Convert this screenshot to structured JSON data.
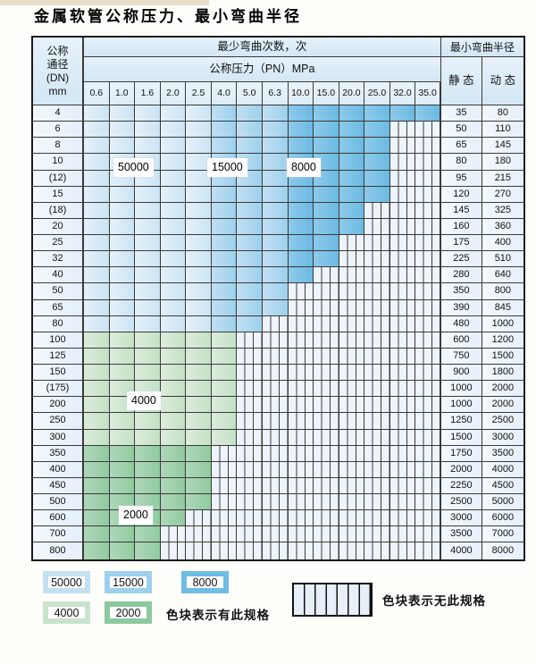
{
  "page_title": "金属软管公称压力、最小弯曲半径",
  "table": {
    "dn_header_lines": [
      "公称",
      "通径",
      "(DN)",
      "mm"
    ],
    "bend_cycles_header": "最少弯曲次数，次",
    "pressure_header": "公称压力（PN）MPa",
    "min_bend_radius_header": "最小弯曲半径",
    "static_label": "静 态",
    "dynamic_label": "动 态",
    "pressure_columns": [
      "0.6",
      "1.0",
      "1.6",
      "2.0",
      "2.5",
      "4.0",
      "5.0",
      "6.3",
      "10.0",
      "15.0",
      "20.0",
      "25.0",
      "32.0",
      "35.0"
    ],
    "rows": [
      {
        "dn": "4",
        "available_cols": 14,
        "static": "35",
        "dynamic": "80"
      },
      {
        "dn": "6",
        "available_cols": 12,
        "static": "50",
        "dynamic": "110"
      },
      {
        "dn": "8",
        "available_cols": 12,
        "static": "65",
        "dynamic": "145"
      },
      {
        "dn": "10",
        "available_cols": 12,
        "static": "80",
        "dynamic": "180"
      },
      {
        "dn": "(12)",
        "available_cols": 12,
        "static": "95",
        "dynamic": "215"
      },
      {
        "dn": "15",
        "available_cols": 12,
        "static": "120",
        "dynamic": "270"
      },
      {
        "dn": "(18)",
        "available_cols": 11,
        "static": "145",
        "dynamic": "325"
      },
      {
        "dn": "20",
        "available_cols": 11,
        "static": "160",
        "dynamic": "360"
      },
      {
        "dn": "25",
        "available_cols": 10,
        "static": "175",
        "dynamic": "400"
      },
      {
        "dn": "32",
        "available_cols": 10,
        "static": "225",
        "dynamic": "510"
      },
      {
        "dn": "40",
        "available_cols": 9,
        "static": "280",
        "dynamic": "640"
      },
      {
        "dn": "50",
        "available_cols": 8,
        "static": "350",
        "dynamic": "800"
      },
      {
        "dn": "65",
        "available_cols": 8,
        "static": "390",
        "dynamic": "845"
      },
      {
        "dn": "80",
        "available_cols": 7,
        "static": "480",
        "dynamic": "1000"
      },
      {
        "dn": "100",
        "available_cols": 6,
        "static": "600",
        "dynamic": "1200"
      },
      {
        "dn": "125",
        "available_cols": 6,
        "static": "750",
        "dynamic": "1500"
      },
      {
        "dn": "150",
        "available_cols": 6,
        "static": "900",
        "dynamic": "1800"
      },
      {
        "dn": "(175)",
        "available_cols": 6,
        "static": "1000",
        "dynamic": "2000"
      },
      {
        "dn": "200",
        "available_cols": 6,
        "static": "1000",
        "dynamic": "2000"
      },
      {
        "dn": "250",
        "available_cols": 6,
        "static": "1250",
        "dynamic": "2500"
      },
      {
        "dn": "300",
        "available_cols": 6,
        "static": "1500",
        "dynamic": "3000"
      },
      {
        "dn": "350",
        "available_cols": 5,
        "static": "1750",
        "dynamic": "3500"
      },
      {
        "dn": "400",
        "available_cols": 5,
        "static": "2000",
        "dynamic": "4000"
      },
      {
        "dn": "450",
        "available_cols": 5,
        "static": "2250",
        "dynamic": "4500"
      },
      {
        "dn": "500",
        "available_cols": 5,
        "static": "2500",
        "dynamic": "5000"
      },
      {
        "dn": "600",
        "available_cols": 4,
        "static": "3000",
        "dynamic": "6000"
      },
      {
        "dn": "700",
        "available_cols": 3,
        "static": "3500",
        "dynamic": "7000"
      },
      {
        "dn": "800",
        "available_cols": 3,
        "static": "4000",
        "dynamic": "8000"
      }
    ]
  },
  "zones": {
    "blue_rows_end": 14,
    "col_zone_breaks": [
      {
        "zone": "z50000",
        "cycles": "50000",
        "from_col": 0,
        "to_col": 5
      },
      {
        "zone": "z15000",
        "cycles": "15000",
        "from_col": 5,
        "to_col": 8
      },
      {
        "zone": "z8000",
        "cycles": "8000",
        "from_col": 8,
        "to_col": 14
      }
    ],
    "green_4000_rows": [
      14,
      21
    ],
    "green_2000_rows": [
      21,
      28
    ]
  },
  "zone_labels": [
    {
      "text": "50000"
    },
    {
      "text": "15000"
    },
    {
      "text": "8000"
    },
    {
      "text": "4000"
    },
    {
      "text": "2000"
    }
  ],
  "legend": {
    "swatches": [
      {
        "value": "50000"
      },
      {
        "value": "15000"
      },
      {
        "value": "8000"
      },
      {
        "value": "4000"
      },
      {
        "value": "2000"
      }
    ],
    "available_note": "色块表示有此规格",
    "unavailable_note": "色块表示无此规格"
  },
  "colors": {
    "zone_50000": "#cbe4f4",
    "zone_15000": "#9dd0ed",
    "zone_8000": "#6bbae3",
    "zone_4000": "#c3e1c6",
    "zone_2000": "#90cba0",
    "striped_bg": "#edf4fb",
    "grid_line": "#3a3a3a",
    "header_bg": "#d3e7f5"
  }
}
